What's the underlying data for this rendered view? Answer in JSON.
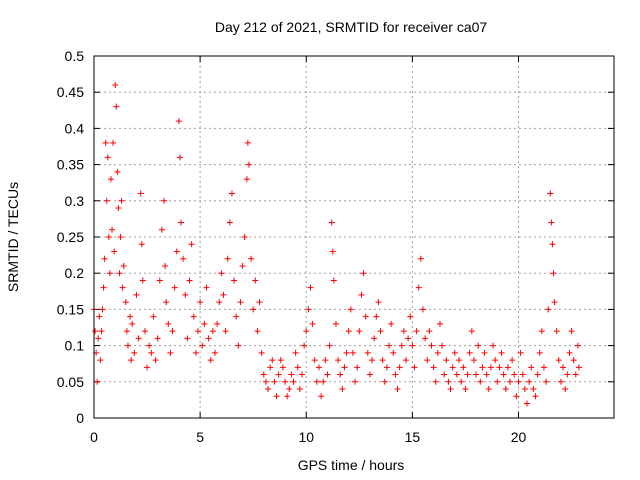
{
  "chart_data": {
    "type": "scatter",
    "title": "Day 212 of 2021, SRMTID for receiver ca07",
    "xlabel": "GPS time / hours",
    "ylabel": "SRMTID / TECUs",
    "xlim": [
      0,
      24.5
    ],
    "ylim": [
      0,
      0.5
    ],
    "x_ticks": [
      0,
      5,
      10,
      15,
      20
    ],
    "y_ticks": [
      0,
      0.05,
      0.1,
      0.15,
      0.2,
      0.25,
      0.3,
      0.35,
      0.4,
      0.45,
      0.5
    ],
    "x_tick_labels": [
      "0",
      "5",
      "10",
      "15",
      "20"
    ],
    "y_tick_labels": [
      "0",
      "0.05",
      "0.1",
      "0.15",
      "0.2",
      "0.25",
      "0.3",
      "0.35",
      "0.4",
      "0.45",
      "0.5"
    ],
    "grid": true,
    "marker": "+",
    "marker_color": "#ff0000",
    "series": [
      {
        "name": "SRMTID",
        "points": [
          [
            0.0,
            0.15
          ],
          [
            0.05,
            0.12
          ],
          [
            0.1,
            0.09
          ],
          [
            0.15,
            0.05
          ],
          [
            0.2,
            0.11
          ],
          [
            0.25,
            0.14
          ],
          [
            0.3,
            0.08
          ],
          [
            0.35,
            0.12
          ],
          [
            0.4,
            0.15
          ],
          [
            0.45,
            0.18
          ],
          [
            0.5,
            0.22
          ],
          [
            0.55,
            0.38
          ],
          [
            0.6,
            0.3
          ],
          [
            0.65,
            0.36
          ],
          [
            0.7,
            0.25
          ],
          [
            0.75,
            0.2
          ],
          [
            0.8,
            0.33
          ],
          [
            0.85,
            0.26
          ],
          [
            0.9,
            0.38
          ],
          [
            0.95,
            0.23
          ],
          [
            1.0,
            0.46
          ],
          [
            1.05,
            0.43
          ],
          [
            1.1,
            0.34
          ],
          [
            1.15,
            0.29
          ],
          [
            1.2,
            0.2
          ],
          [
            1.25,
            0.25
          ],
          [
            1.3,
            0.3
          ],
          [
            1.35,
            0.18
          ],
          [
            1.4,
            0.21
          ],
          [
            1.5,
            0.16
          ],
          [
            1.55,
            0.12
          ],
          [
            1.6,
            0.1
          ],
          [
            1.7,
            0.14
          ],
          [
            1.75,
            0.08
          ],
          [
            1.8,
            0.13
          ],
          [
            1.9,
            0.09
          ],
          [
            2.0,
            0.17
          ],
          [
            2.1,
            0.11
          ],
          [
            2.2,
            0.31
          ],
          [
            2.25,
            0.24
          ],
          [
            2.3,
            0.19
          ],
          [
            2.4,
            0.12
          ],
          [
            2.5,
            0.07
          ],
          [
            2.6,
            0.1
          ],
          [
            2.7,
            0.09
          ],
          [
            2.8,
            0.14
          ],
          [
            2.9,
            0.08
          ],
          [
            3.0,
            0.11
          ],
          [
            3.1,
            0.19
          ],
          [
            3.2,
            0.26
          ],
          [
            3.3,
            0.3
          ],
          [
            3.35,
            0.21
          ],
          [
            3.4,
            0.16
          ],
          [
            3.5,
            0.13
          ],
          [
            3.6,
            0.09
          ],
          [
            3.7,
            0.12
          ],
          [
            3.8,
            0.18
          ],
          [
            3.9,
            0.23
          ],
          [
            4.0,
            0.41
          ],
          [
            4.05,
            0.36
          ],
          [
            4.1,
            0.27
          ],
          [
            4.2,
            0.22
          ],
          [
            4.3,
            0.17
          ],
          [
            4.4,
            0.11
          ],
          [
            4.5,
            0.19
          ],
          [
            4.6,
            0.24
          ],
          [
            4.7,
            0.14
          ],
          [
            4.8,
            0.09
          ],
          [
            4.9,
            0.12
          ],
          [
            5.0,
            0.16
          ],
          [
            5.1,
            0.1
          ],
          [
            5.2,
            0.13
          ],
          [
            5.3,
            0.18
          ],
          [
            5.4,
            0.11
          ],
          [
            5.5,
            0.08
          ],
          [
            5.6,
            0.12
          ],
          [
            5.7,
            0.09
          ],
          [
            5.8,
            0.13
          ],
          [
            5.9,
            0.16
          ],
          [
            6.0,
            0.2
          ],
          [
            6.1,
            0.17
          ],
          [
            6.2,
            0.12
          ],
          [
            6.3,
            0.22
          ],
          [
            6.4,
            0.27
          ],
          [
            6.5,
            0.31
          ],
          [
            6.6,
            0.19
          ],
          [
            6.7,
            0.14
          ],
          [
            6.8,
            0.1
          ],
          [
            6.9,
            0.16
          ],
          [
            7.0,
            0.21
          ],
          [
            7.1,
            0.25
          ],
          [
            7.2,
            0.33
          ],
          [
            7.25,
            0.38
          ],
          [
            7.3,
            0.35
          ],
          [
            7.4,
            0.22
          ],
          [
            7.5,
            0.15
          ],
          [
            7.6,
            0.19
          ],
          [
            7.7,
            0.12
          ],
          [
            7.8,
            0.16
          ],
          [
            7.9,
            0.09
          ],
          [
            8.0,
            0.06
          ],
          [
            8.1,
            0.05
          ],
          [
            8.2,
            0.04
          ],
          [
            8.3,
            0.07
          ],
          [
            8.4,
            0.08
          ],
          [
            8.5,
            0.05
          ],
          [
            8.6,
            0.03
          ],
          [
            8.7,
            0.06
          ],
          [
            8.8,
            0.08
          ],
          [
            8.9,
            0.07
          ],
          [
            9.0,
            0.05
          ],
          [
            9.1,
            0.03
          ],
          [
            9.2,
            0.04
          ],
          [
            9.3,
            0.06
          ],
          [
            9.4,
            0.05
          ],
          [
            9.5,
            0.09
          ],
          [
            9.6,
            0.07
          ],
          [
            9.7,
            0.04
          ],
          [
            9.8,
            0.06
          ],
          [
            9.9,
            0.1
          ],
          [
            10.0,
            0.12
          ],
          [
            10.1,
            0.15
          ],
          [
            10.2,
            0.18
          ],
          [
            10.3,
            0.13
          ],
          [
            10.4,
            0.08
          ],
          [
            10.5,
            0.05
          ],
          [
            10.6,
            0.07
          ],
          [
            10.7,
            0.03
          ],
          [
            10.8,
            0.05
          ],
          [
            10.9,
            0.08
          ],
          [
            11.0,
            0.06
          ],
          [
            11.1,
            0.1
          ],
          [
            11.2,
            0.27
          ],
          [
            11.25,
            0.23
          ],
          [
            11.3,
            0.19
          ],
          [
            11.4,
            0.13
          ],
          [
            11.5,
            0.08
          ],
          [
            11.6,
            0.06
          ],
          [
            11.7,
            0.04
          ],
          [
            11.8,
            0.07
          ],
          [
            11.9,
            0.09
          ],
          [
            12.0,
            0.12
          ],
          [
            12.1,
            0.15
          ],
          [
            12.2,
            0.09
          ],
          [
            12.3,
            0.05
          ],
          [
            12.4,
            0.07
          ],
          [
            12.5,
            0.12
          ],
          [
            12.6,
            0.17
          ],
          [
            12.7,
            0.2
          ],
          [
            12.8,
            0.14
          ],
          [
            12.9,
            0.09
          ],
          [
            13.0,
            0.06
          ],
          [
            13.1,
            0.08
          ],
          [
            13.2,
            0.11
          ],
          [
            13.3,
            0.14
          ],
          [
            13.4,
            0.16
          ],
          [
            13.5,
            0.12
          ],
          [
            13.6,
            0.08
          ],
          [
            13.7,
            0.05
          ],
          [
            13.8,
            0.07
          ],
          [
            13.9,
            0.1
          ],
          [
            14.0,
            0.13
          ],
          [
            14.1,
            0.09
          ],
          [
            14.2,
            0.06
          ],
          [
            14.3,
            0.04
          ],
          [
            14.4,
            0.07
          ],
          [
            14.5,
            0.1
          ],
          [
            14.6,
            0.12
          ],
          [
            14.7,
            0.08
          ],
          [
            14.8,
            0.11
          ],
          [
            14.9,
            0.14
          ],
          [
            15.0,
            0.1
          ],
          [
            15.1,
            0.07
          ],
          [
            15.2,
            0.12
          ],
          [
            15.3,
            0.18
          ],
          [
            15.4,
            0.22
          ],
          [
            15.5,
            0.15
          ],
          [
            15.6,
            0.11
          ],
          [
            15.7,
            0.08
          ],
          [
            15.8,
            0.12
          ],
          [
            15.9,
            0.1
          ],
          [
            16.0,
            0.07
          ],
          [
            16.1,
            0.05
          ],
          [
            16.2,
            0.09
          ],
          [
            16.3,
            0.13
          ],
          [
            16.4,
            0.1
          ],
          [
            16.5,
            0.06
          ],
          [
            16.6,
            0.08
          ],
          [
            16.7,
            0.05
          ],
          [
            16.8,
            0.04
          ],
          [
            16.9,
            0.07
          ],
          [
            17.0,
            0.09
          ],
          [
            17.1,
            0.06
          ],
          [
            17.2,
            0.08
          ],
          [
            17.3,
            0.05
          ],
          [
            17.4,
            0.07
          ],
          [
            17.5,
            0.04
          ],
          [
            17.6,
            0.06
          ],
          [
            17.7,
            0.09
          ],
          [
            17.8,
            0.12
          ],
          [
            17.9,
            0.08
          ],
          [
            18.0,
            0.06
          ],
          [
            18.1,
            0.1
          ],
          [
            18.2,
            0.05
          ],
          [
            18.3,
            0.07
          ],
          [
            18.4,
            0.09
          ],
          [
            18.5,
            0.06
          ],
          [
            18.6,
            0.04
          ],
          [
            18.7,
            0.07
          ],
          [
            18.8,
            0.1
          ],
          [
            18.9,
            0.08
          ],
          [
            19.0,
            0.05
          ],
          [
            19.1,
            0.07
          ],
          [
            19.2,
            0.09
          ],
          [
            19.3,
            0.06
          ],
          [
            19.4,
            0.04
          ],
          [
            19.5,
            0.07
          ],
          [
            19.6,
            0.05
          ],
          [
            19.7,
            0.08
          ],
          [
            19.8,
            0.06
          ],
          [
            19.9,
            0.03
          ],
          [
            20.0,
            0.05
          ],
          [
            20.1,
            0.09
          ],
          [
            20.2,
            0.06
          ],
          [
            20.3,
            0.04
          ],
          [
            20.4,
            0.02
          ],
          [
            20.5,
            0.05
          ],
          [
            20.6,
            0.07
          ],
          [
            20.7,
            0.04
          ],
          [
            20.8,
            0.03
          ],
          [
            20.9,
            0.06
          ],
          [
            21.0,
            0.09
          ],
          [
            21.1,
            0.12
          ],
          [
            21.2,
            0.07
          ],
          [
            21.3,
            0.05
          ],
          [
            21.4,
            0.15
          ],
          [
            21.5,
            0.31
          ],
          [
            21.55,
            0.27
          ],
          [
            21.6,
            0.24
          ],
          [
            21.65,
            0.2
          ],
          [
            21.7,
            0.16
          ],
          [
            21.8,
            0.12
          ],
          [
            21.9,
            0.08
          ],
          [
            22.0,
            0.05
          ],
          [
            22.1,
            0.07
          ],
          [
            22.2,
            0.04
          ],
          [
            22.3,
            0.06
          ],
          [
            22.4,
            0.09
          ],
          [
            22.5,
            0.12
          ],
          [
            22.6,
            0.08
          ],
          [
            22.7,
            0.06
          ],
          [
            22.8,
            0.1
          ],
          [
            22.85,
            0.07
          ]
        ]
      }
    ]
  }
}
